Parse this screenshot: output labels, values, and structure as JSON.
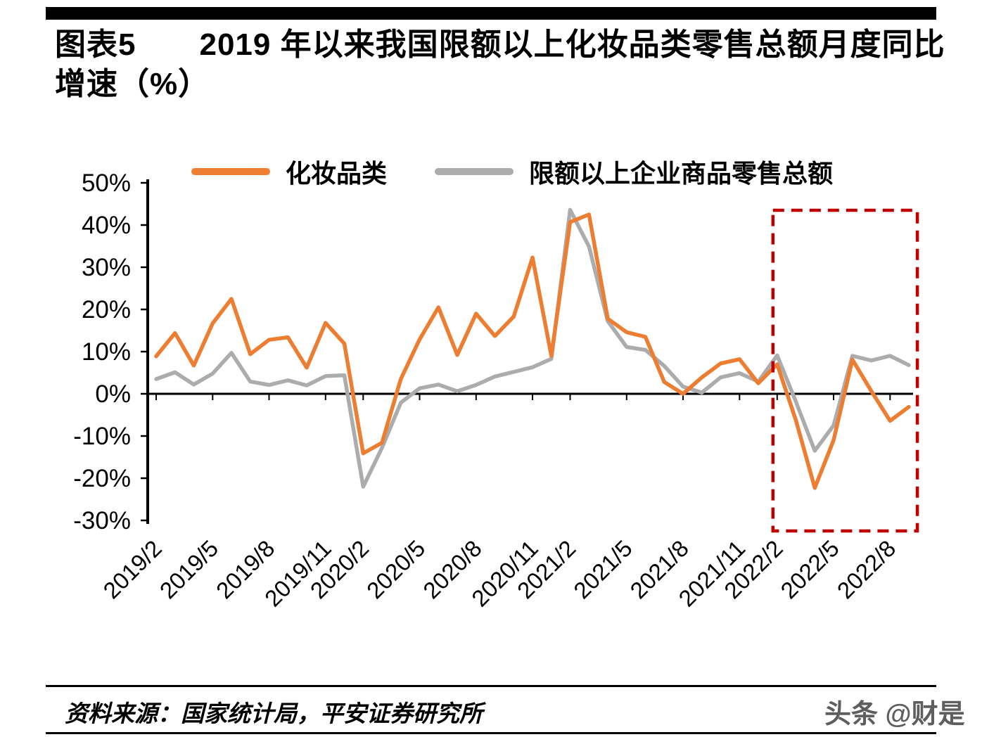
{
  "page": {
    "title": "图表5　　2019 年以来我国限额以上化妆品类零售总额月度同比增速（%）",
    "source": "资料来源：国家统计局，平安证券研究所",
    "watermark": "头条 @财是"
  },
  "chart_data": {
    "type": "line",
    "title": "2019 年以来我国限额以上化妆品类零售总额月度同比增速（%）",
    "unit": "%",
    "grid": false,
    "legend_position": "top",
    "ylim": [
      -30,
      50
    ],
    "y_ticks": [
      50,
      40,
      30,
      20,
      10,
      0,
      -10,
      -20,
      -30
    ],
    "y_tick_labels": [
      "50%",
      "40%",
      "30%",
      "20%",
      "10%",
      "0%",
      "-10%",
      "-20%",
      "-30%"
    ],
    "categories": [
      "2019/2",
      "2019/3",
      "2019/4",
      "2019/5",
      "2019/6",
      "2019/7",
      "2019/8",
      "2019/9",
      "2019/10",
      "2019/11",
      "2019/12",
      "2020/2",
      "2020/3",
      "2020/4",
      "2020/5",
      "2020/6",
      "2020/7",
      "2020/8",
      "2020/9",
      "2020/10",
      "2020/11",
      "2020/12",
      "2021/2",
      "2021/3",
      "2021/4",
      "2021/5",
      "2021/6",
      "2021/7",
      "2021/8",
      "2021/9",
      "2021/10",
      "2021/11",
      "2021/12",
      "2022/2",
      "2022/3",
      "2022/4",
      "2022/5",
      "2022/6",
      "2022/7",
      "2022/8",
      "2022/9"
    ],
    "x_tick_labels": [
      "2019/2",
      "2019/5",
      "2019/8",
      "2019/11",
      "2020/2",
      "2020/5",
      "2020/8",
      "2020/11",
      "2021/2",
      "2021/5",
      "2021/8",
      "2021/11",
      "2022/2",
      "2022/5",
      "2022/8"
    ],
    "series": [
      {
        "name": "化妆品类",
        "color": "#ED7D31",
        "values": [
          8.9,
          14.4,
          6.7,
          16.7,
          22.5,
          9.4,
          12.8,
          13.4,
          6.2,
          16.8,
          11.9,
          -14.1,
          -11.6,
          3.5,
          12.9,
          20.5,
          9.2,
          19.0,
          13.7,
          18.3,
          32.3,
          9.0,
          40.7,
          42.5,
          17.8,
          14.6,
          13.5,
          2.8,
          0.0,
          3.9,
          7.2,
          8.2,
          2.5,
          7.0,
          -6.3,
          -22.3,
          -11.0,
          8.1,
          0.7,
          -6.4,
          -3.1
        ]
      },
      {
        "name": "限额以上企业商品零售总额",
        "color": "#ACACAC",
        "values": [
          3.5,
          5.1,
          2.2,
          4.8,
          9.7,
          2.9,
          2.1,
          3.2,
          2.0,
          4.2,
          4.4,
          -22.0,
          -12.8,
          -2.1,
          1.3,
          2.2,
          0.6,
          2.1,
          4.1,
          5.2,
          6.3,
          8.3,
          43.6,
          34.9,
          17.2,
          11.1,
          10.4,
          6.6,
          1.7,
          0.3,
          3.9,
          4.9,
          2.9,
          9.1,
          -1.9,
          -13.5,
          -7.5,
          9.0,
          7.9,
          9.0,
          6.8
        ]
      }
    ],
    "annotations": [
      {
        "type": "box",
        "style": "dashed",
        "color": "#C00000",
        "x_from": "2022/2",
        "x_to": "2022/9",
        "y_from": -32.5,
        "y_to": 43.5
      }
    ]
  }
}
